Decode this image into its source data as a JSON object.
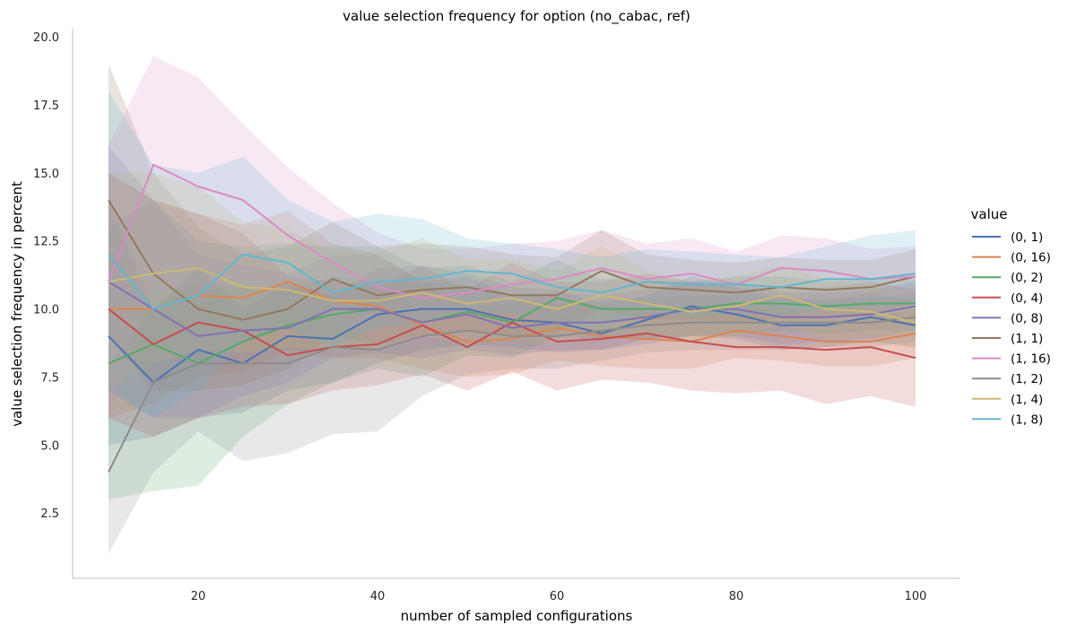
{
  "chart_data": {
    "type": "line",
    "title": "value selection frequency for option (no_cabac, ref)",
    "xlabel": "number of sampled configurations",
    "ylabel": "value selection frequency in percent",
    "xlim": [
      6,
      105
    ],
    "ylim": [
      0.1,
      20.3
    ],
    "xticks": [
      20,
      40,
      60,
      80,
      100
    ],
    "yticks": [
      2.5,
      5.0,
      7.5,
      10.0,
      12.5,
      15.0,
      17.5,
      20.0
    ],
    "xtick_labels": [
      "20",
      "40",
      "60",
      "80",
      "100"
    ],
    "ytick_labels": [
      "2.5",
      "5.0",
      "7.5",
      "10.0",
      "12.5",
      "15.0",
      "17.5",
      "20.0"
    ],
    "grid": false,
    "legend": {
      "title": "value",
      "position": "right"
    },
    "x": [
      10,
      15,
      20,
      25,
      30,
      35,
      40,
      45,
      50,
      55,
      60,
      65,
      70,
      75,
      80,
      85,
      90,
      95,
      100
    ],
    "series": [
      {
        "name": "(0, 1)",
        "color": "#4c72b0",
        "values": [
          9.0,
          7.3,
          8.5,
          8.0,
          9.0,
          8.9,
          9.8,
          10.0,
          10.0,
          9.6,
          9.5,
          9.1,
          9.6,
          10.1,
          9.8,
          9.4,
          9.4,
          9.7,
          9.4
        ],
        "lower": [
          5.0,
          5.3,
          6.0,
          6.2,
          7.0,
          7.3,
          8.0,
          8.5,
          8.7,
          8.6,
          8.4,
          8.5,
          8.9,
          9.0,
          8.9,
          8.5,
          8.6,
          8.8,
          8.6
        ],
        "upper": [
          14.0,
          10.0,
          11.5,
          10.0,
          11.0,
          10.5,
          11.5,
          11.6,
          11.3,
          10.8,
          10.7,
          10.2,
          10.5,
          11.2,
          10.8,
          10.4,
          10.3,
          10.6,
          10.3
        ]
      },
      {
        "name": "(0, 16)",
        "color": "#dd8452",
        "values": [
          10.0,
          10.0,
          10.5,
          10.4,
          11.0,
          10.3,
          10.1,
          9.4,
          8.8,
          8.9,
          9.3,
          9.0,
          8.9,
          8.8,
          9.2,
          9.0,
          8.8,
          8.8,
          9.1
        ],
        "lower": [
          6.0,
          6.5,
          7.5,
          7.7,
          8.5,
          8.2,
          8.2,
          7.8,
          7.5,
          7.6,
          8.1,
          7.9,
          7.8,
          7.8,
          8.2,
          8.1,
          7.9,
          7.9,
          8.2
        ],
        "upper": [
          15.0,
          14.0,
          13.5,
          13.1,
          13.6,
          12.4,
          12.0,
          11.0,
          10.1,
          10.2,
          10.5,
          10.1,
          10.0,
          9.8,
          10.2,
          9.9,
          9.7,
          9.7,
          10.0
        ]
      },
      {
        "name": "(0, 2)",
        "color": "#55a868",
        "values": [
          8.0,
          8.7,
          8.0,
          8.8,
          9.4,
          9.8,
          10.0,
          9.5,
          9.9,
          9.5,
          10.4,
          10.0,
          10.0,
          10.0,
          10.2,
          10.2,
          10.1,
          10.2,
          10.2
        ],
        "lower": [
          3.0,
          3.3,
          3.5,
          5.3,
          6.5,
          7.3,
          7.8,
          7.5,
          8.3,
          8.2,
          9.0,
          8.9,
          8.9,
          9.0,
          9.1,
          9.2,
          9.1,
          9.2,
          9.2
        ],
        "upper": [
          13.0,
          14.0,
          12.5,
          12.3,
          12.4,
          12.3,
          12.3,
          11.5,
          11.6,
          11.0,
          11.8,
          11.1,
          11.1,
          11.0,
          11.2,
          11.2,
          11.0,
          11.1,
          11.1
        ]
      },
      {
        "name": "(0, 4)",
        "color": "#c44e52",
        "values": [
          10.0,
          8.7,
          9.5,
          9.2,
          8.3,
          8.6,
          8.7,
          9.4,
          8.6,
          9.5,
          8.8,
          8.9,
          9.1,
          8.8,
          8.6,
          8.6,
          8.5,
          8.6,
          8.2
        ],
        "lower": [
          6.0,
          5.3,
          6.0,
          6.4,
          6.5,
          7.0,
          7.2,
          7.6,
          7.0,
          7.7,
          7.0,
          7.4,
          7.3,
          7.0,
          6.9,
          7.0,
          6.5,
          6.8,
          6.4
        ],
        "upper": [
          15.0,
          14.0,
          13.5,
          12.8,
          11.2,
          11.0,
          10.8,
          11.6,
          10.7,
          11.7,
          11.0,
          11.0,
          11.3,
          11.0,
          10.8,
          10.7,
          10.8,
          11.0,
          10.7
        ]
      },
      {
        "name": "(0, 8)",
        "color": "#8172b3",
        "values": [
          11.0,
          10.0,
          9.0,
          9.2,
          9.3,
          10.0,
          10.0,
          9.5,
          9.8,
          9.3,
          9.5,
          9.5,
          9.7,
          10.0,
          10.0,
          9.7,
          9.7,
          9.8,
          10.1
        ],
        "lower": [
          7.0,
          6.0,
          6.0,
          6.8,
          7.3,
          8.2,
          8.4,
          8.2,
          8.5,
          8.3,
          8.5,
          8.5,
          8.7,
          9.0,
          9.0,
          8.7,
          8.8,
          8.9,
          9.2
        ],
        "upper": [
          16.0,
          14.0,
          12.0,
          11.6,
          11.3,
          12.0,
          12.0,
          11.0,
          11.2,
          10.5,
          10.6,
          10.5,
          10.7,
          11.0,
          11.0,
          10.6,
          10.6,
          10.7,
          11.0
        ]
      },
      {
        "name": "(1, 1)",
        "color": "#937860",
        "values": [
          14.0,
          11.3,
          10.0,
          9.6,
          10.0,
          11.1,
          10.5,
          10.7,
          10.8,
          10.5,
          10.5,
          11.4,
          10.8,
          10.7,
          10.6,
          10.8,
          10.7,
          10.8,
          11.2
        ],
        "lower": [
          9.0,
          7.0,
          7.0,
          7.2,
          7.8,
          9.0,
          8.7,
          9.0,
          9.2,
          9.0,
          9.1,
          10.0,
          9.6,
          9.6,
          9.5,
          9.7,
          9.7,
          9.8,
          10.2
        ],
        "upper": [
          19.0,
          15.0,
          13.0,
          12.0,
          12.3,
          13.2,
          12.3,
          12.4,
          12.3,
          12.0,
          11.9,
          12.9,
          12.0,
          11.8,
          11.7,
          11.9,
          11.8,
          11.8,
          12.2
        ]
      },
      {
        "name": "(1, 16)",
        "color": "#da8bc3",
        "values": [
          11.0,
          15.3,
          14.5,
          14.0,
          12.7,
          11.7,
          10.8,
          10.4,
          10.6,
          10.9,
          11.1,
          11.5,
          11.1,
          11.3,
          10.9,
          11.5,
          11.4,
          11.1,
          11.2
        ],
        "lower": [
          6.0,
          11.0,
          10.5,
          11.0,
          10.2,
          9.5,
          8.8,
          8.7,
          9.0,
          9.4,
          9.7,
          10.1,
          9.8,
          10.0,
          9.7,
          10.3,
          10.3,
          10.0,
          10.2
        ],
        "upper": [
          16.0,
          19.3,
          18.5,
          16.8,
          15.2,
          13.9,
          12.8,
          12.2,
          12.2,
          12.4,
          12.5,
          12.9,
          12.4,
          12.6,
          12.1,
          12.7,
          12.6,
          12.2,
          12.3
        ]
      },
      {
        "name": "(1, 2)",
        "color": "#8c8c8c",
        "values": [
          4.0,
          7.3,
          8.0,
          8.0,
          8.0,
          8.6,
          8.5,
          9.0,
          9.2,
          9.0,
          9.0,
          9.2,
          9.4,
          9.5,
          9.5,
          9.5,
          9.5,
          9.5,
          9.7
        ],
        "lower": [
          1.0,
          4.0,
          5.5,
          4.4,
          4.7,
          5.4,
          5.5,
          6.8,
          7.6,
          7.8,
          7.8,
          8.1,
          8.4,
          8.5,
          8.5,
          8.5,
          8.6,
          8.6,
          8.8
        ],
        "upper": [
          8.0,
          10.0,
          11.0,
          10.8,
          10.7,
          11.2,
          11.0,
          11.0,
          10.9,
          10.3,
          10.2,
          10.3,
          10.4,
          10.5,
          10.5,
          10.4,
          10.4,
          10.4,
          10.6
        ]
      },
      {
        "name": "(1, 4)",
        "color": "#ccb974",
        "values": [
          11.0,
          11.3,
          11.5,
          10.8,
          10.7,
          10.3,
          10.3,
          10.6,
          10.2,
          10.4,
          10.0,
          10.5,
          10.2,
          9.9,
          10.1,
          10.5,
          10.0,
          9.9,
          9.5
        ],
        "lower": [
          7.0,
          8.0,
          8.5,
          8.4,
          8.6,
          8.5,
          8.6,
          9.0,
          8.7,
          9.0,
          8.7,
          9.2,
          9.0,
          8.8,
          9.0,
          9.4,
          8.9,
          8.9,
          8.5
        ],
        "upper": [
          15.0,
          15.0,
          14.5,
          13.2,
          12.9,
          12.1,
          12.1,
          12.6,
          11.8,
          11.8,
          11.4,
          12.3,
          11.4,
          11.0,
          11.2,
          11.6,
          11.1,
          10.9,
          10.5
        ]
      },
      {
        "name": "(1, 8)",
        "color": "#64b5cd",
        "values": [
          12.0,
          10.0,
          10.5,
          12.0,
          11.7,
          10.6,
          11.0,
          11.1,
          11.4,
          11.3,
          10.8,
          10.6,
          11.0,
          10.9,
          10.9,
          10.8,
          11.1,
          11.1,
          11.3
        ],
        "lower": [
          7.0,
          6.0,
          7.0,
          8.8,
          9.3,
          8.6,
          9.3,
          9.5,
          9.9,
          9.8,
          9.5,
          9.3,
          9.8,
          9.7,
          9.8,
          9.7,
          10.0,
          10.0,
          10.2
        ],
        "upper": [
          18.0,
          15.3,
          15.0,
          15.6,
          14.0,
          13.2,
          13.5,
          13.3,
          12.6,
          12.4,
          12.2,
          11.9,
          12.2,
          12.1,
          12.0,
          11.9,
          12.3,
          12.7,
          12.9
        ]
      }
    ]
  }
}
